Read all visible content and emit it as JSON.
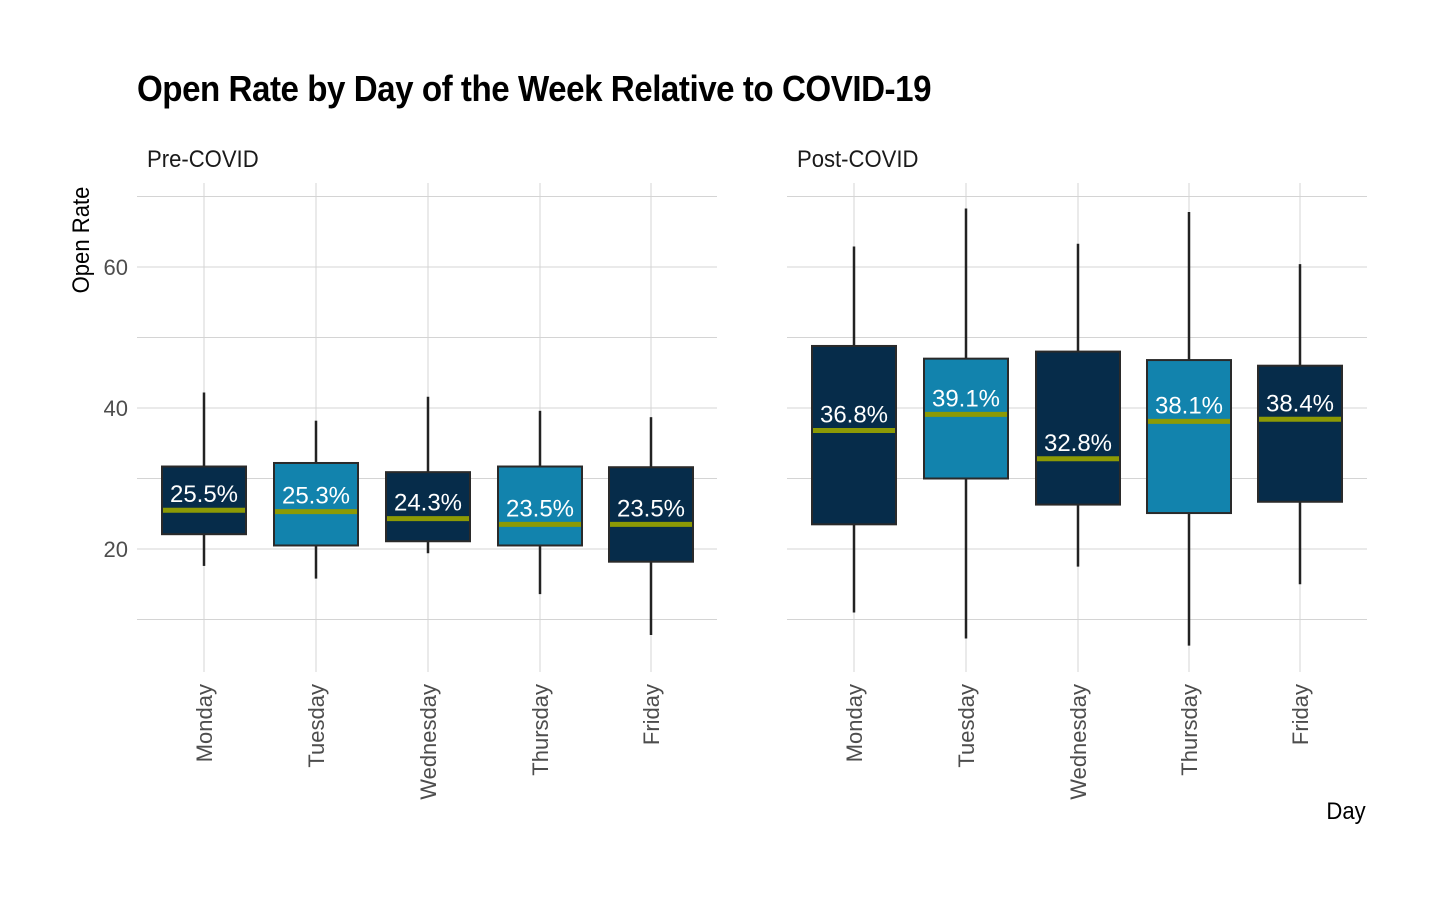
{
  "chart_data": {
    "type": "boxplot",
    "title": "Open Rate by Day of the Week Relative to COVID-19",
    "xlabel": "Day",
    "ylabel": "Open Rate",
    "ylim": [
      4,
      72
    ],
    "yticks": [
      20,
      40,
      60
    ],
    "grid": true,
    "colors": {
      "dark": "#062c4a",
      "light": "#1283ad",
      "median": "#8c9a05",
      "whisker": "#222222",
      "grid": "#d4d4d4",
      "label": "#ffffff"
    },
    "panels": [
      {
        "label": "Pre-COVID",
        "categories": [
          "Monday",
          "Tuesday",
          "Wednesday",
          "Thursday",
          "Friday"
        ],
        "boxes": [
          {
            "min": 17.6,
            "q1": 22.1,
            "median": 25.5,
            "q3": 31.7,
            "max": 42.2,
            "label": "25.5%",
            "fill": "dark"
          },
          {
            "min": 15.8,
            "q1": 20.5,
            "median": 25.3,
            "q3": 32.2,
            "max": 38.2,
            "label": "25.3%",
            "fill": "light"
          },
          {
            "min": 19.4,
            "q1": 21.1,
            "median": 24.3,
            "q3": 30.9,
            "max": 41.6,
            "label": "24.3%",
            "fill": "dark"
          },
          {
            "min": 13.6,
            "q1": 20.5,
            "median": 23.5,
            "q3": 31.7,
            "max": 39.6,
            "label": "23.5%",
            "fill": "light"
          },
          {
            "min": 7.8,
            "q1": 18.2,
            "median": 23.5,
            "q3": 31.6,
            "max": 38.7,
            "label": "23.5%",
            "fill": "dark"
          }
        ]
      },
      {
        "label": "Post-COVID",
        "categories": [
          "Monday",
          "Tuesday",
          "Wednesday",
          "Thursday",
          "Friday"
        ],
        "boxes": [
          {
            "min": 11.0,
            "q1": 23.5,
            "median": 36.8,
            "q3": 48.8,
            "max": 62.9,
            "label": "36.8%",
            "fill": "dark"
          },
          {
            "min": 7.3,
            "q1": 30.0,
            "median": 39.1,
            "q3": 47.0,
            "max": 68.3,
            "label": "39.1%",
            "fill": "light"
          },
          {
            "min": 17.5,
            "q1": 26.3,
            "median": 32.8,
            "q3": 48.0,
            "max": 63.3,
            "label": "32.8%",
            "fill": "dark"
          },
          {
            "min": 6.3,
            "q1": 25.1,
            "median": 38.1,
            "q3": 46.8,
            "max": 67.8,
            "label": "38.1%",
            "fill": "light"
          },
          {
            "min": 15.0,
            "q1": 26.7,
            "median": 38.4,
            "q3": 46.0,
            "max": 60.4,
            "label": "38.4%",
            "fill": "dark"
          }
        ]
      }
    ]
  }
}
